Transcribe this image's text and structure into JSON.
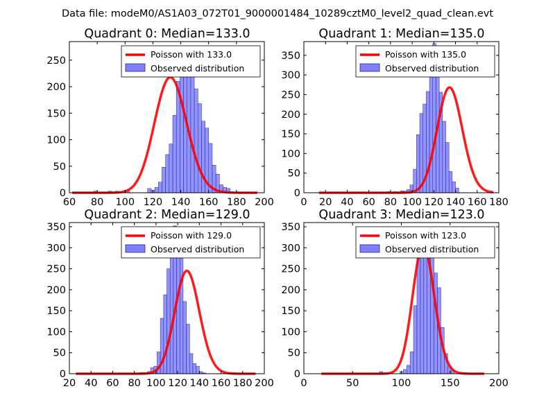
{
  "figure": {
    "suptitle": "Data file: modeM0/AS1A03_072T01_9000001484_10289cztM0_level2_quad_clean.evt"
  },
  "colors": {
    "poisson_line": "#ff0000",
    "hist_fill": "#8080ff",
    "hist_edge": "#24248f"
  },
  "chart_data": [
    {
      "type": "bar",
      "title": "Quadrant 0: Median=133.0",
      "legend": [
        "Poisson with 133.0",
        "Observed distribution"
      ],
      "legend_position": "top-right",
      "xlim": [
        60,
        200
      ],
      "ylim": [
        0,
        285
      ],
      "xticks": [
        60,
        80,
        100,
        120,
        140,
        160,
        180,
        200
      ],
      "yticks": [
        0,
        50,
        100,
        150,
        200,
        250
      ],
      "bin_start": 62,
      "bin_width": 2.58,
      "values": [
        0,
        0,
        0,
        0,
        0,
        0,
        3,
        0,
        0,
        0,
        3,
        0,
        3,
        0,
        0,
        3,
        0,
        0,
        0,
        0,
        0,
        8,
        5,
        10,
        20,
        48,
        72,
        92,
        146,
        210,
        225,
        258,
        242,
        256,
        196,
        168,
        135,
        122,
        93,
        52,
        35,
        15,
        10,
        8,
        2,
        0,
        0,
        0,
        0,
        0,
        0,
        0
      ],
      "poisson_mu": 133.0,
      "poisson_range": [
        62,
        195
      ]
    },
    {
      "type": "bar",
      "title": "Quadrant 1: Median=135.0",
      "legend": [
        "Poisson with 135.0",
        "Observed distribution"
      ],
      "legend_position": "top-right",
      "xlim": [
        0,
        180
      ],
      "ylim": [
        0,
        385
      ],
      "xticks": [
        0,
        20,
        40,
        60,
        80,
        100,
        120,
        140,
        160,
        180
      ],
      "yticks": [
        0,
        50,
        100,
        150,
        200,
        250,
        300,
        350
      ],
      "bin_start": 14,
      "bin_width": 3.0,
      "values": [
        0,
        0,
        0,
        0,
        0,
        0,
        0,
        0,
        0,
        0,
        0,
        0,
        0,
        0,
        0,
        0,
        0,
        0,
        0,
        2,
        0,
        3,
        2,
        3,
        2,
        5,
        4,
        8,
        20,
        60,
        148,
        202,
        226,
        258,
        300,
        380,
        320,
        256,
        182,
        128,
        54,
        28,
        12,
        0
      ],
      "poisson_mu": 135.0,
      "poisson_range": [
        14,
        175
      ]
    },
    {
      "type": "bar",
      "title": "Quadrant 2: Median=129.0",
      "legend": [
        "Poisson with 129.0",
        "Observed distribution"
      ],
      "legend_position": "top-right",
      "xlim": [
        20,
        200
      ],
      "ylim": [
        0,
        360
      ],
      "xticks": [
        20,
        40,
        60,
        80,
        100,
        120,
        140,
        160,
        180,
        200
      ],
      "yticks": [
        0,
        50,
        100,
        150,
        200,
        250,
        300,
        350
      ],
      "bin_start": 26,
      "bin_width": 3.0,
      "values": [
        0,
        0,
        0,
        0,
        0,
        0,
        0,
        0,
        0,
        0,
        0,
        0,
        0,
        0,
        0,
        0,
        0,
        0,
        0,
        2,
        3,
        2,
        5,
        14,
        18,
        52,
        132,
        188,
        250,
        300,
        352,
        338,
        282,
        172,
        118,
        48,
        24,
        18,
        5,
        2,
        0,
        0,
        0,
        0,
        0,
        0,
        0,
        0,
        0
      ],
      "poisson_mu": 129.0,
      "poisson_range": [
        26,
        192
      ]
    },
    {
      "type": "bar",
      "title": "Quadrant 3: Median=123.0",
      "legend": [
        "Poisson with 123.0",
        "Observed distribution"
      ],
      "legend_position": "top-right",
      "xlim": [
        0,
        200
      ],
      "ylim": [
        0,
        360
      ],
      "xticks": [
        0,
        50,
        100,
        150,
        200
      ],
      "yticks": [
        0,
        50,
        100,
        150,
        200,
        250,
        300,
        350
      ],
      "bin_start": 18,
      "bin_width": 3.5,
      "values": [
        0,
        0,
        0,
        0,
        0,
        0,
        0,
        0,
        0,
        0,
        0,
        0,
        0,
        0,
        0,
        0,
        0,
        5,
        0,
        0,
        0,
        0,
        0,
        5,
        10,
        20,
        52,
        162,
        282,
        300,
        338,
        342,
        290,
        240,
        205,
        110,
        48,
        18,
        8,
        0,
        0,
        0,
        0,
        0,
        0,
        0,
        0,
        0,
        0
      ],
      "poisson_mu": 123.0,
      "poisson_range": [
        18,
        185
      ]
    }
  ]
}
